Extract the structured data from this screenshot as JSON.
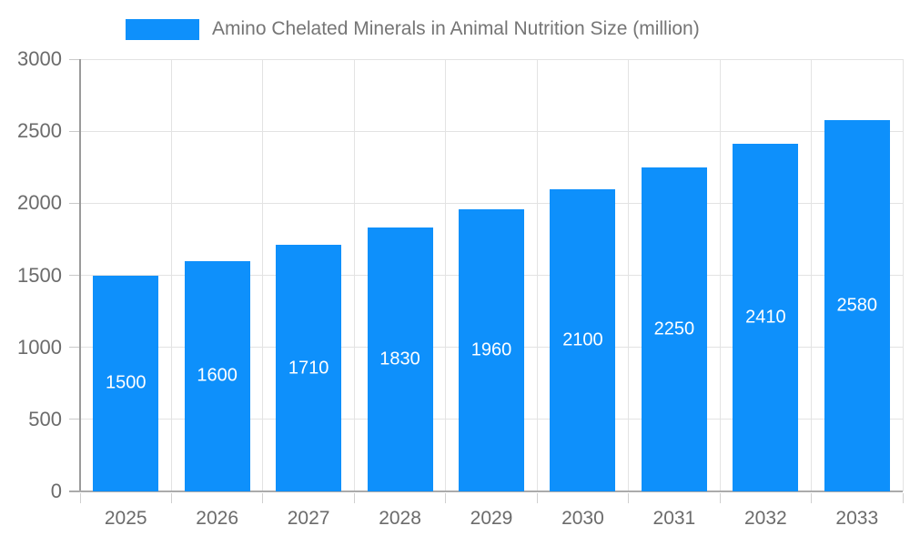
{
  "legend": {
    "label": "Amino Chelated Minerals in Animal Nutrition Size (million)",
    "swatch_color": "#0e90fb"
  },
  "chart_data": {
    "type": "bar",
    "title": "Amino Chelated Minerals in Animal Nutrition Size (million)",
    "categories": [
      "2025",
      "2026",
      "2027",
      "2028",
      "2029",
      "2030",
      "2031",
      "2032",
      "2033"
    ],
    "values": [
      1500,
      1600,
      1710,
      1830,
      1960,
      2100,
      2250,
      2410,
      2580
    ],
    "xlabel": "",
    "ylabel": "",
    "ylim": [
      0,
      3000
    ],
    "yticks": [
      0,
      500,
      1000,
      1500,
      2000,
      2500,
      3000
    ],
    "grid": true,
    "legend_position": "top",
    "bar_color": "#0e90fb",
    "bar_label_color": "#ffffff"
  },
  "colors": {
    "bar": "#0e90fb",
    "title_text": "#757575",
    "axis_text": "#6b6b6b",
    "gridline": "#e3e3e3",
    "y_axis_line": "#9a9a9a",
    "x_axis_line": "#ababab",
    "tick": "#cccccc",
    "background": "#ffffff"
  }
}
